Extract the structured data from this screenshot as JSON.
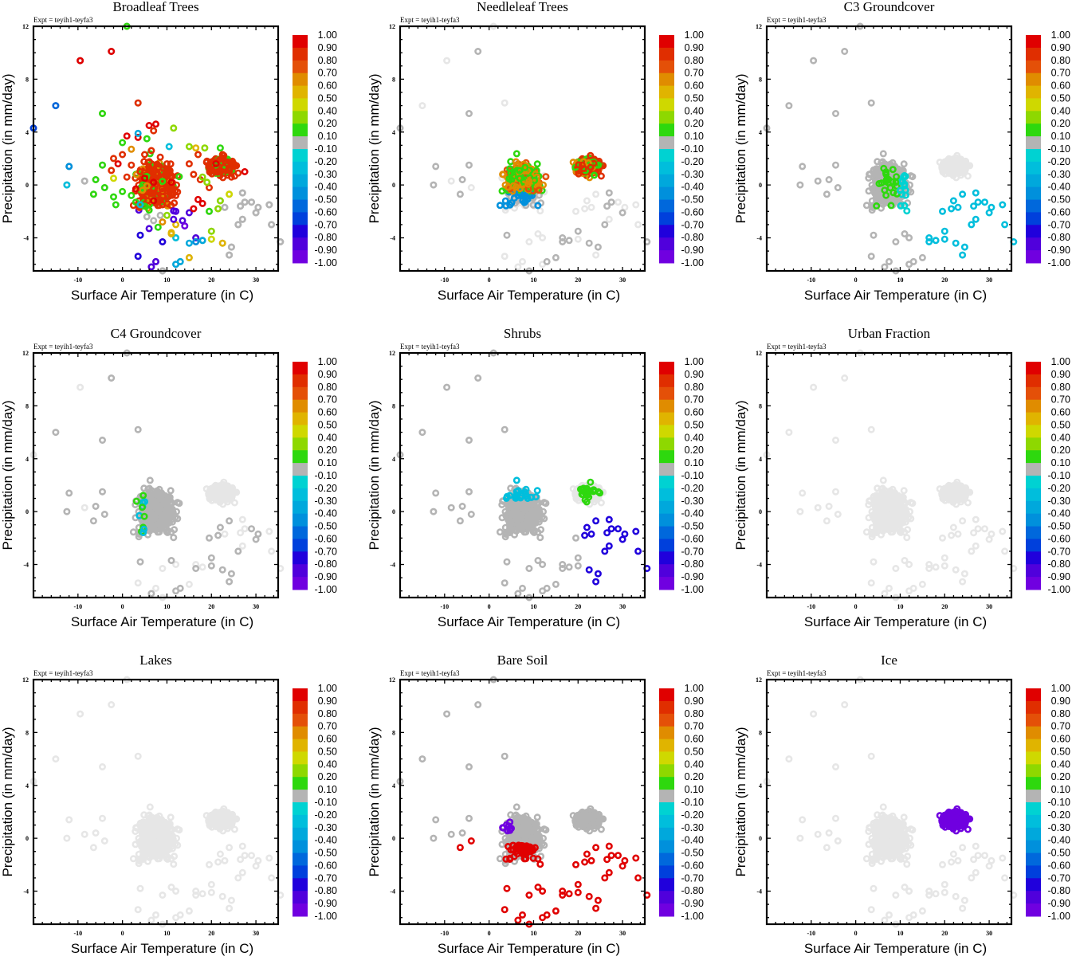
{
  "figure": {
    "expt_label": "Expt = teyih1-teyfa3",
    "xlabel": "Surface Air Temperature (in C)",
    "ylabel": "Precipitation (in mm/day)"
  },
  "colorbar": {
    "labels": [
      "1.00",
      "0.90",
      "0.80",
      "0.70",
      "0.60",
      "0.50",
      "0.40",
      "0.20",
      "0.10",
      "-0.10",
      "-0.20",
      "-0.30",
      "-0.40",
      "-0.50",
      "-0.60",
      "-0.70",
      "-0.80",
      "-0.90",
      "-1.00"
    ],
    "colors": [
      "#e00000",
      "#e02e00",
      "#e45008",
      "#e08c00",
      "#e0b400",
      "#cfd800",
      "#8ed800",
      "#2ed80e",
      "#b4b4b4",
      "#00d2d2",
      "#00bedc",
      "#00a8dc",
      "#0090dc",
      "#0068dc",
      "#0040dc",
      "#2000dc",
      "#5000dc",
      "#7000e0"
    ],
    "background_color": "#e6e6e6"
  },
  "chart_data": [
    {
      "type": "scatter",
      "title": "Broadleaf Trees",
      "xlabel": "Surface Air Temperature (in C)",
      "ylabel": "Precipitation (in mm/day)",
      "xlim": [
        -20,
        35
      ],
      "ylim": [
        -6.5,
        12
      ],
      "xticks": [
        -10,
        0,
        10,
        20,
        30
      ],
      "yticks": [
        -4,
        0,
        4,
        8,
        12
      ],
      "color_variable_range": [
        -1,
        1
      ],
      "description": "Strong positive correlation (0.8-1.0) across main mid-latitude cluster and tropical cluster; green (0.1-0.2) fringe; negative (purple/blue) points at low precipitation 8-15C",
      "points": [
        {
          "x": -9.5,
          "y": 9.4,
          "c": 0.95
        },
        {
          "x": -2.5,
          "y": 10.1,
          "c": 0.95
        },
        {
          "x": 1,
          "y": 12,
          "c": 0.15
        },
        {
          "x": -15,
          "y": 6,
          "c": -0.6
        },
        {
          "x": -20,
          "y": 4.3,
          "c": -0.7
        },
        {
          "x": -12,
          "y": 1.4,
          "c": -0.5
        },
        {
          "x": -12.5,
          "y": 0,
          "c": -0.3
        },
        {
          "x": -4.5,
          "y": 5.4,
          "c": 0.15
        },
        {
          "x": 3.5,
          "y": 6.2,
          "c": 0.85
        },
        {
          "x": -6.5,
          "y": -0.7,
          "c": 0.15
        },
        {
          "x": -8.5,
          "y": 0.3,
          "c": -0.05
        },
        {
          "x": -6,
          "y": 0.4,
          "c": 0.15
        },
        {
          "x": -4.5,
          "y": 1.5,
          "c": 0.15
        },
        {
          "x": -4,
          "y": -0.2,
          "c": 0.15
        },
        {
          "x": 6,
          "y": 4.5,
          "c": 0.9
        },
        {
          "x": 7.5,
          "y": 4.6,
          "c": 0.9
        },
        {
          "x": 7,
          "y": 4.1,
          "c": 0.85
        },
        {
          "x": 11.5,
          "y": 4.3,
          "c": 0.2
        },
        {
          "x": 3.5,
          "y": 3.6,
          "c": 0.9
        },
        {
          "x": 1,
          "y": 3.7,
          "c": 0.9
        },
        {
          "x": 0,
          "y": 3.2,
          "c": 0.15
        },
        {
          "x": 5.5,
          "y": 3.5,
          "c": 0.15
        },
        {
          "x": 3.5,
          "y": 3.9,
          "c": -0.4
        },
        {
          "x": 10.5,
          "y": 2.9,
          "c": -0.3
        },
        {
          "x": 2,
          "y": 2.7,
          "c": 0.65
        },
        {
          "x": 2,
          "y": 1.5,
          "c": 0.85
        },
        {
          "x": 4,
          "y": 1,
          "c": 0.85
        },
        {
          "x": 5,
          "y": 0.5,
          "c": 0.9
        },
        {
          "x": 6,
          "y": 1.2,
          "c": 0.85
        },
        {
          "x": 7,
          "y": 0.2,
          "c": 0.9
        },
        {
          "x": 8,
          "y": 0.8,
          "c": 0.85
        },
        {
          "x": 9,
          "y": -0.5,
          "c": 0.85
        },
        {
          "x": 10,
          "y": 1.6,
          "c": 0.85
        },
        {
          "x": 11,
          "y": 0.2,
          "c": 0.9
        },
        {
          "x": 12,
          "y": -0.8,
          "c": 0.85
        },
        {
          "x": 9,
          "y": -1.5,
          "c": 0.85
        },
        {
          "x": 7,
          "y": -1.2,
          "c": 0.9
        },
        {
          "x": -2,
          "y": 2,
          "c": 0.85
        },
        {
          "x": -1,
          "y": 1.6,
          "c": 0.9
        },
        {
          "x": 0,
          "y": 2.3,
          "c": 0.85
        },
        {
          "x": -2.5,
          "y": 1.1,
          "c": 0.85
        },
        {
          "x": 1,
          "y": 0.6,
          "c": 0.85
        },
        {
          "x": 3,
          "y": -0.3,
          "c": 0.9
        },
        {
          "x": 5,
          "y": 2.3,
          "c": 0.85
        },
        {
          "x": 6.5,
          "y": 2.6,
          "c": 0.85
        },
        {
          "x": 8.5,
          "y": 2.1,
          "c": 0.85
        },
        {
          "x": 4.5,
          "y": -0.4,
          "c": 0.6
        },
        {
          "x": 2,
          "y": -0.8,
          "c": 0.15
        },
        {
          "x": 0,
          "y": -0.5,
          "c": 0.15
        },
        {
          "x": -1.5,
          "y": -1.5,
          "c": 0.15
        },
        {
          "x": -2,
          "y": -0.9,
          "c": 0.15
        },
        {
          "x": -2,
          "y": 0.5,
          "c": 0.45
        },
        {
          "x": 3,
          "y": -1.3,
          "c": 0.15
        },
        {
          "x": 5,
          "y": -1.6,
          "c": 0.15
        },
        {
          "x": 4,
          "y": -1.5,
          "c": -0.3
        },
        {
          "x": 5.5,
          "y": -2.4,
          "c": -0.05
        },
        {
          "x": 7,
          "y": -2.7,
          "c": -0.05
        },
        {
          "x": 8.5,
          "y": -2.3,
          "c": -0.05
        },
        {
          "x": 10,
          "y": -2.3,
          "c": 0.2
        },
        {
          "x": 6,
          "y": -1.9,
          "c": 0.15
        },
        {
          "x": 8,
          "y": -3.2,
          "c": 0.15
        },
        {
          "x": 9,
          "y": -2.8,
          "c": 0.6
        },
        {
          "x": 12,
          "y": -3,
          "c": 0.5
        },
        {
          "x": 11,
          "y": -3.6,
          "c": 0.55
        },
        {
          "x": 11.5,
          "y": -2.6,
          "c": -0.85
        },
        {
          "x": 13.5,
          "y": -2.7,
          "c": -0.85
        },
        {
          "x": 14,
          "y": -3.1,
          "c": -0.95
        },
        {
          "x": 15,
          "y": -2.1,
          "c": -0.85
        },
        {
          "x": 12,
          "y": -2,
          "c": -0.85
        },
        {
          "x": 6,
          "y": -3.3,
          "c": -0.9
        },
        {
          "x": 4,
          "y": -3.8,
          "c": -0.8
        },
        {
          "x": 9,
          "y": -4.3,
          "c": -0.75
        },
        {
          "x": 16.5,
          "y": -4,
          "c": -0.85
        },
        {
          "x": 16.5,
          "y": -4.3,
          "c": -0.5
        },
        {
          "x": 15,
          "y": -4.4,
          "c": -0.35
        },
        {
          "x": 18,
          "y": -4.2,
          "c": -0.4
        },
        {
          "x": 12,
          "y": -4,
          "c": -0.3
        },
        {
          "x": 11,
          "y": -3.7,
          "c": 0.55
        },
        {
          "x": 20,
          "y": -3.5,
          "c": 0.2
        },
        {
          "x": 20,
          "y": -4.1,
          "c": 0.45
        },
        {
          "x": 22.5,
          "y": -4.4,
          "c": 0.55
        },
        {
          "x": 3.5,
          "y": -5.4,
          "c": -0.75
        },
        {
          "x": 6.5,
          "y": -6.2,
          "c": -0.9
        },
        {
          "x": 7.5,
          "y": -5.8,
          "c": -0.9
        },
        {
          "x": 12,
          "y": -6,
          "c": -0.4
        },
        {
          "x": 13,
          "y": -5.8,
          "c": -0.35
        },
        {
          "x": 15,
          "y": -5.5,
          "c": 0.55
        },
        {
          "x": 9,
          "y": -6.5,
          "c": -0.05
        },
        {
          "x": 15,
          "y": 2.9,
          "c": 0.2
        },
        {
          "x": 16.5,
          "y": 2.8,
          "c": 0.5
        },
        {
          "x": 18.5,
          "y": 2.8,
          "c": 0.2
        },
        {
          "x": 22,
          "y": 2.8,
          "c": 0.15
        },
        {
          "x": 17,
          "y": 2.3,
          "c": 0.85
        },
        {
          "x": 19,
          "y": 1.8,
          "c": 0.85
        },
        {
          "x": 20,
          "y": 1.2,
          "c": 0.85
        },
        {
          "x": 21,
          "y": 1.6,
          "c": 0.9
        },
        {
          "x": 22,
          "y": 1,
          "c": 0.85
        },
        {
          "x": 23,
          "y": 1.8,
          "c": 0.85
        },
        {
          "x": 24,
          "y": 1.2,
          "c": 0.85
        },
        {
          "x": 25,
          "y": 1.6,
          "c": 0.85
        },
        {
          "x": 26,
          "y": 0.9,
          "c": 0.85
        },
        {
          "x": 27.5,
          "y": 1,
          "c": 0.9
        },
        {
          "x": 24.5,
          "y": 0.6,
          "c": 0.85
        },
        {
          "x": 22.5,
          "y": 2.3,
          "c": 0.85
        },
        {
          "x": 15,
          "y": 1.6,
          "c": 0.85
        },
        {
          "x": 16,
          "y": 0.8,
          "c": 0.85
        },
        {
          "x": 17.5,
          "y": 0.4,
          "c": 0.85
        },
        {
          "x": 19.5,
          "y": -0.2,
          "c": 0.85
        },
        {
          "x": 17,
          "y": -1.1,
          "c": 0.95
        },
        {
          "x": 18,
          "y": -1.4,
          "c": 0.95
        },
        {
          "x": 16,
          "y": -1.8,
          "c": 0.9
        },
        {
          "x": 19.5,
          "y": -2,
          "c": 0.15
        },
        {
          "x": 21.5,
          "y": -1.8,
          "c": 0.2
        },
        {
          "x": 22,
          "y": -1.2,
          "c": 0.2
        },
        {
          "x": 24,
          "y": -0.7,
          "c": 0.45
        },
        {
          "x": 19,
          "y": 0.2,
          "c": 0.2
        },
        {
          "x": 18,
          "y": 0.6,
          "c": 0.2
        },
        {
          "x": 27,
          "y": -0.6,
          "c": -0.05
        },
        {
          "x": 27.5,
          "y": -1.3,
          "c": -0.05
        },
        {
          "x": 29,
          "y": -1.3,
          "c": -0.05
        },
        {
          "x": 30.5,
          "y": -1.7,
          "c": -0.05
        },
        {
          "x": 30,
          "y": -2.1,
          "c": -0.05
        },
        {
          "x": 26.5,
          "y": -1.6,
          "c": -0.05
        },
        {
          "x": 27,
          "y": -2.6,
          "c": -0.05
        },
        {
          "x": 26,
          "y": -3,
          "c": -0.05
        },
        {
          "x": 33,
          "y": -1.5,
          "c": -0.05
        },
        {
          "x": 33.5,
          "y": -3,
          "c": -0.05
        },
        {
          "x": 24.5,
          "y": -4.7,
          "c": -0.05
        },
        {
          "x": 24,
          "y": -5.3,
          "c": -0.05
        },
        {
          "x": 23,
          "y": -1.7,
          "c": -0.05
        },
        {
          "x": 35.5,
          "y": -4.3,
          "c": -0.05
        }
      ]
    },
    {
      "type": "scatter",
      "title": "Needleleaf Trees",
      "xlim": [
        -20,
        35
      ],
      "ylim": [
        -6.5,
        12
      ],
      "description": "Positive correlation (0.6-0.9) in tropical cluster (15-28C) and part of mid-latitude cluster; green (0.1) broad; negative (blue) at low precipitation"
    },
    {
      "type": "scatter",
      "title": "C3 Groundcover",
      "xlim": [
        -20,
        35
      ],
      "ylim": [
        -6.5,
        12
      ],
      "description": "Mostly near zero (grey); cyan/blue (-0.2 to -0.5) on warm/dry fringe; few green points"
    },
    {
      "type": "scatter",
      "title": "C4 Groundcover",
      "xlim": [
        -20,
        35
      ],
      "ylim": [
        -6.5,
        12
      ],
      "description": "Mostly near zero; mixed positive and negative on mid-latitude fringe; purple outliers at high precipitation"
    },
    {
      "type": "scatter",
      "title": "Shrubs",
      "xlim": [
        -20,
        35
      ],
      "ylim": [
        -6.5,
        12
      ],
      "description": "Mostly near zero; blue/purple negatives at warm dry points and upper edge of main cluster"
    },
    {
      "type": "scatter",
      "title": "Urban Fraction",
      "xlim": [
        -20,
        35
      ],
      "ylim": [
        -6.5,
        12
      ],
      "description": "All points light grey (no data / background)"
    },
    {
      "type": "scatter",
      "title": "Lakes",
      "xlim": [
        -20,
        35
      ],
      "ylim": [
        -6.5,
        12
      ],
      "description": "All points light grey (no data / background)"
    },
    {
      "type": "scatter",
      "title": "Bare Soil",
      "xlim": [
        -20,
        35
      ],
      "ylim": [
        -6.5,
        12
      ],
      "description": "Red (0.9) at low precipitation points; purple (-0.9) at upper-left of main cluster; grey elsewhere"
    },
    {
      "type": "scatter",
      "title": "Ice",
      "xlim": [
        -20,
        35
      ],
      "ylim": [
        -6.5,
        12
      ],
      "description": "Tropical cluster (15-28C, 0-3 mm/day) all purple (-1.0); rest light grey"
    }
  ]
}
